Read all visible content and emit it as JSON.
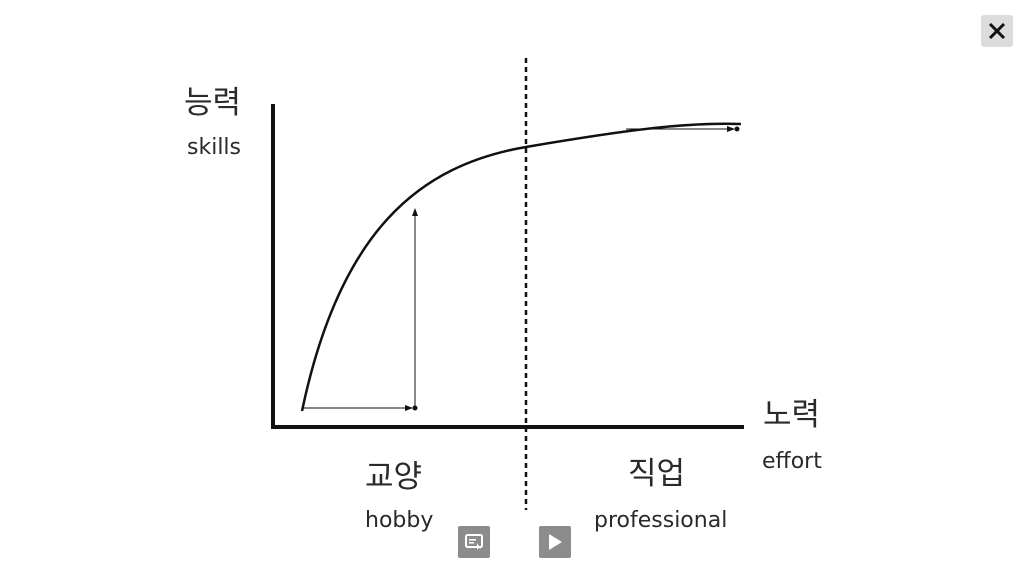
{
  "labels": {
    "y_axis_ko": "능력",
    "y_axis_en": "skills",
    "x_axis_ko": "노력",
    "x_axis_en": "effort",
    "region_left_ko": "교양",
    "region_left_en": "hobby",
    "region_right_ko": "직업",
    "region_right_en": "professional"
  },
  "controls": {
    "close_icon": "close-icon",
    "screen_icon": "screen-share-icon",
    "play_icon": "play-icon"
  },
  "colors": {
    "ink": "#111111",
    "button_dark": "#8c8c8c",
    "button_light": "#dcdcdc"
  }
}
